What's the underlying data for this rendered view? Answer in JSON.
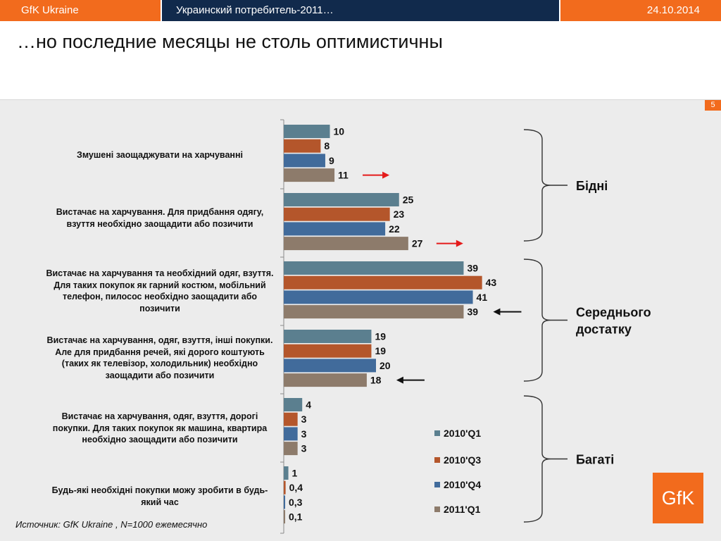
{
  "header": {
    "company": "GfK Ukraine",
    "presentation": "Украинский потребитель-2011…",
    "date": "24.10.2014"
  },
  "slide": {
    "title": "…но последние месяцы не столь оптимистичны",
    "page_number": "5",
    "source": "Источник:  GfK Ukraine , N=1000 ежемесячно",
    "logo_text": "GfK"
  },
  "colors": {
    "brand_orange": "#f26b1d",
    "header_navy": "#112a4c",
    "arrow_red": "#e41b1b",
    "arrow_black": "#111111"
  },
  "chart_data": {
    "type": "bar",
    "orientation": "horizontal",
    "categories": [
      "Змушені заощаджувати на харчуванні",
      "Вистачає на харчування. Для придбання одягу, взуття необхідно заощадити або позичити",
      "Вистачає на харчування та необхідний одяг, взуття. Для таких покупок як гарний костюм, мобільний телефон, пилосос необхідно заощадити або позичити",
      "Вистачає на харчування, одяг, взуття, інші покупки. Але для придбання речей, які дорого коштують (таких як телевізор, холодильник) необхідно заощадити або позичити",
      "Вистачає на харчування, одяг, взуття, дорогі покупки. Для таких покупок як машина, квартира необхідно заощадити або позичити",
      "Будь-які необхідні покупки можу зробити в будь-який час"
    ],
    "series": [
      {
        "name": "2010'Q1",
        "color": "#5b7f8f",
        "values": [
          10,
          25,
          39,
          19,
          4,
          1
        ]
      },
      {
        "name": "2010'Q3",
        "color": "#b4562b",
        "values": [
          8,
          23,
          43,
          19,
          3,
          0.4
        ]
      },
      {
        "name": "2010'Q4",
        "color": "#416b9b",
        "values": [
          9,
          22,
          41,
          20,
          3,
          0.3
        ]
      },
      {
        "name": "2011'Q1",
        "color": "#8d7b6b",
        "values": [
          11,
          27,
          39,
          18,
          3,
          0.1
        ]
      }
    ],
    "value_labels": [
      [
        "10",
        "8",
        "9",
        "11"
      ],
      [
        "25",
        "23",
        "22",
        "27"
      ],
      [
        "39",
        "43",
        "41",
        "39"
      ],
      [
        "19",
        "19",
        "20",
        "18"
      ],
      [
        "4",
        "3",
        "3",
        "3"
      ],
      [
        "1",
        "0,4",
        "0,3",
        "0,1"
      ]
    ],
    "xlim": [
      0,
      44
    ],
    "legend_position": "bottom-right inside plot",
    "groups": [
      {
        "label": [
          "Бідні"
        ],
        "categories": [
          0,
          1
        ]
      },
      {
        "label": [
          "Середнього",
          "достатку"
        ],
        "categories": [
          2,
          3
        ]
      },
      {
        "label": [
          "Багаті"
        ],
        "categories": [
          4,
          5
        ]
      }
    ],
    "arrows": [
      {
        "category": 0,
        "series": 3,
        "direction": "right",
        "color": "red"
      },
      {
        "category": 1,
        "series": 3,
        "direction": "right",
        "color": "red"
      },
      {
        "category": 2,
        "series": 3,
        "direction": "left",
        "color": "black"
      },
      {
        "category": 3,
        "series": 3,
        "direction": "left",
        "color": "black"
      }
    ]
  }
}
